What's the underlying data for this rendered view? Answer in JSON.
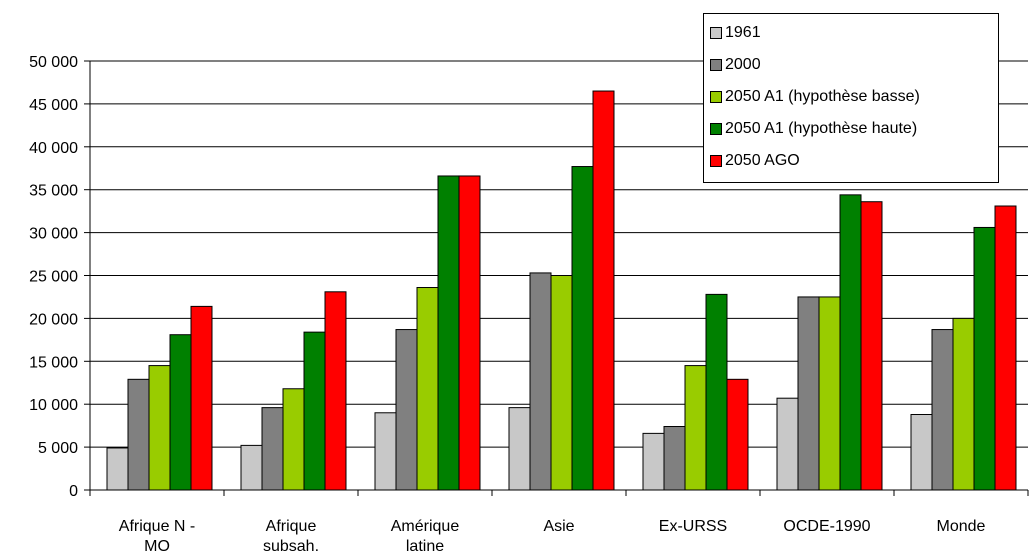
{
  "chart_data": {
    "type": "bar",
    "title": "",
    "xlabel": "",
    "ylabel": "",
    "ylim": [
      0,
      50000
    ],
    "yticks": [
      0,
      5000,
      10000,
      15000,
      20000,
      25000,
      30000,
      35000,
      40000,
      45000,
      50000
    ],
    "ytick_labels": [
      "0",
      "5 000",
      "10 000",
      "15 000",
      "20 000",
      "25 000",
      "30 000",
      "35 000",
      "40 000",
      "45 000",
      "50 000"
    ],
    "categories": [
      [
        "Afrique N -",
        "MO"
      ],
      [
        "Afrique",
        "subsah."
      ],
      [
        "Amérique",
        "latine"
      ],
      [
        "Asie"
      ],
      [
        "Ex-URSS"
      ],
      [
        "OCDE-1990"
      ],
      [
        "Monde"
      ]
    ],
    "series": [
      {
        "name": "1961",
        "color": "#c8c8c8",
        "values": [
          4900,
          5200,
          9000,
          9600,
          6600,
          10700,
          8800
        ]
      },
      {
        "name": "2000",
        "color": "#808080",
        "values": [
          12900,
          9600,
          18700,
          25300,
          7400,
          22500,
          18700
        ]
      },
      {
        "name": "2050 A1 (hypothèse basse)",
        "color": "#99cc00",
        "values": [
          14500,
          11800,
          23600,
          25000,
          14500,
          22500,
          20000
        ]
      },
      {
        "name": "2050 A1 (hypothèse haute)",
        "color": "#008000",
        "values": [
          18100,
          18400,
          36600,
          37700,
          22800,
          34400,
          30600
        ]
      },
      {
        "name": "2050 AGO",
        "color": "#ff0000",
        "values": [
          21400,
          23100,
          36600,
          46500,
          12900,
          33600,
          33100
        ]
      }
    ],
    "grid": true,
    "legend_position": "top-right"
  }
}
